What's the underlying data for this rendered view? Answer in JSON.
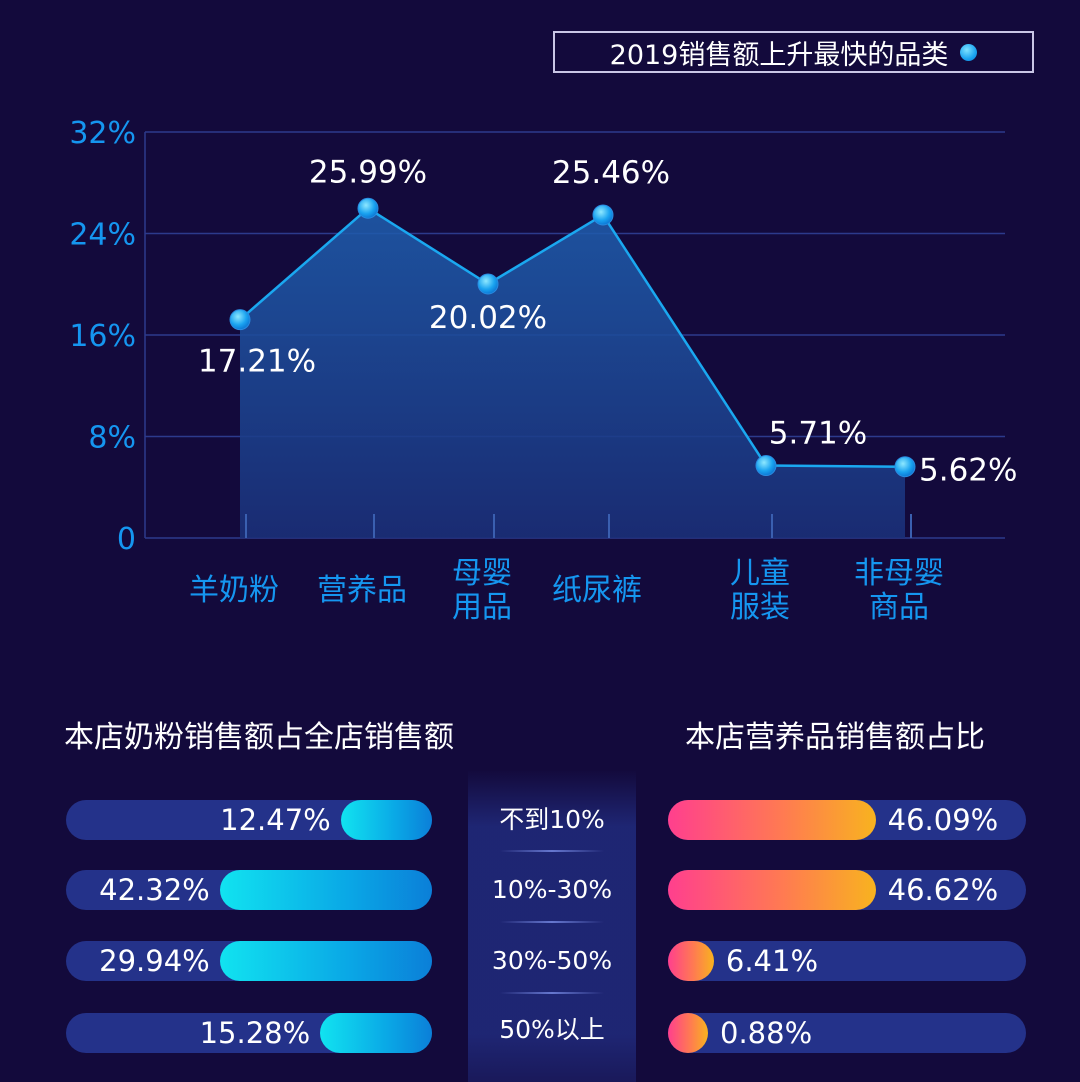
{
  "chart_data": [
    {
      "type": "area",
      "title": "2019销售额上升最快的品类",
      "categories": [
        [
          "羊奶粉"
        ],
        [
          "营养品"
        ],
        [
          "母婴",
          "用品"
        ],
        [
          "纸尿裤"
        ],
        [
          "儿童",
          "服装"
        ],
        [
          "非母婴",
          "商品"
        ]
      ],
      "values": [
        17.21,
        25.99,
        20.02,
        25.46,
        5.71,
        5.62
      ],
      "value_labels": [
        "17.21%",
        "25.99%",
        "20.02%",
        "25.46%",
        "5.71%",
        "5.62%"
      ],
      "ylim": [
        0,
        32
      ],
      "y_ticks": [
        {
          "value": 0,
          "label": "0"
        },
        {
          "value": 8,
          "label": "8%"
        },
        {
          "value": 16,
          "label": "16%"
        },
        {
          "value": 24,
          "label": "24%"
        },
        {
          "value": 32,
          "label": "32%"
        }
      ],
      "grid": true,
      "legend": "top-right",
      "colors": {
        "line": "#1aa8f0",
        "axis_text": "#1596f0",
        "grid": "#2c3a8c"
      }
    },
    {
      "type": "bar",
      "orientation": "horizontal",
      "title": "本店奶粉销售额占全店销售额",
      "values": [
        12.47,
        42.32,
        29.94,
        15.28
      ],
      "value_labels": [
        "12.47%",
        "42.32%",
        "29.94%",
        "15.28%"
      ],
      "direction": "right-to-left",
      "colors": {
        "fill": "#11d6ee",
        "track": "#24328a"
      }
    },
    {
      "type": "bar",
      "orientation": "horizontal",
      "title": "本店营养品销售额占比",
      "values": [
        46.09,
        46.62,
        6.41,
        0.88
      ],
      "value_labels": [
        "46.09%",
        "46.62%",
        "6.41%",
        "0.88%"
      ],
      "direction": "left-to-right",
      "colors": {
        "fill": "#ff5a78",
        "track": "#24328a"
      }
    }
  ],
  "ranges": [
    "不到10%",
    "10%-30%",
    "30%-50%",
    "50%以上"
  ]
}
